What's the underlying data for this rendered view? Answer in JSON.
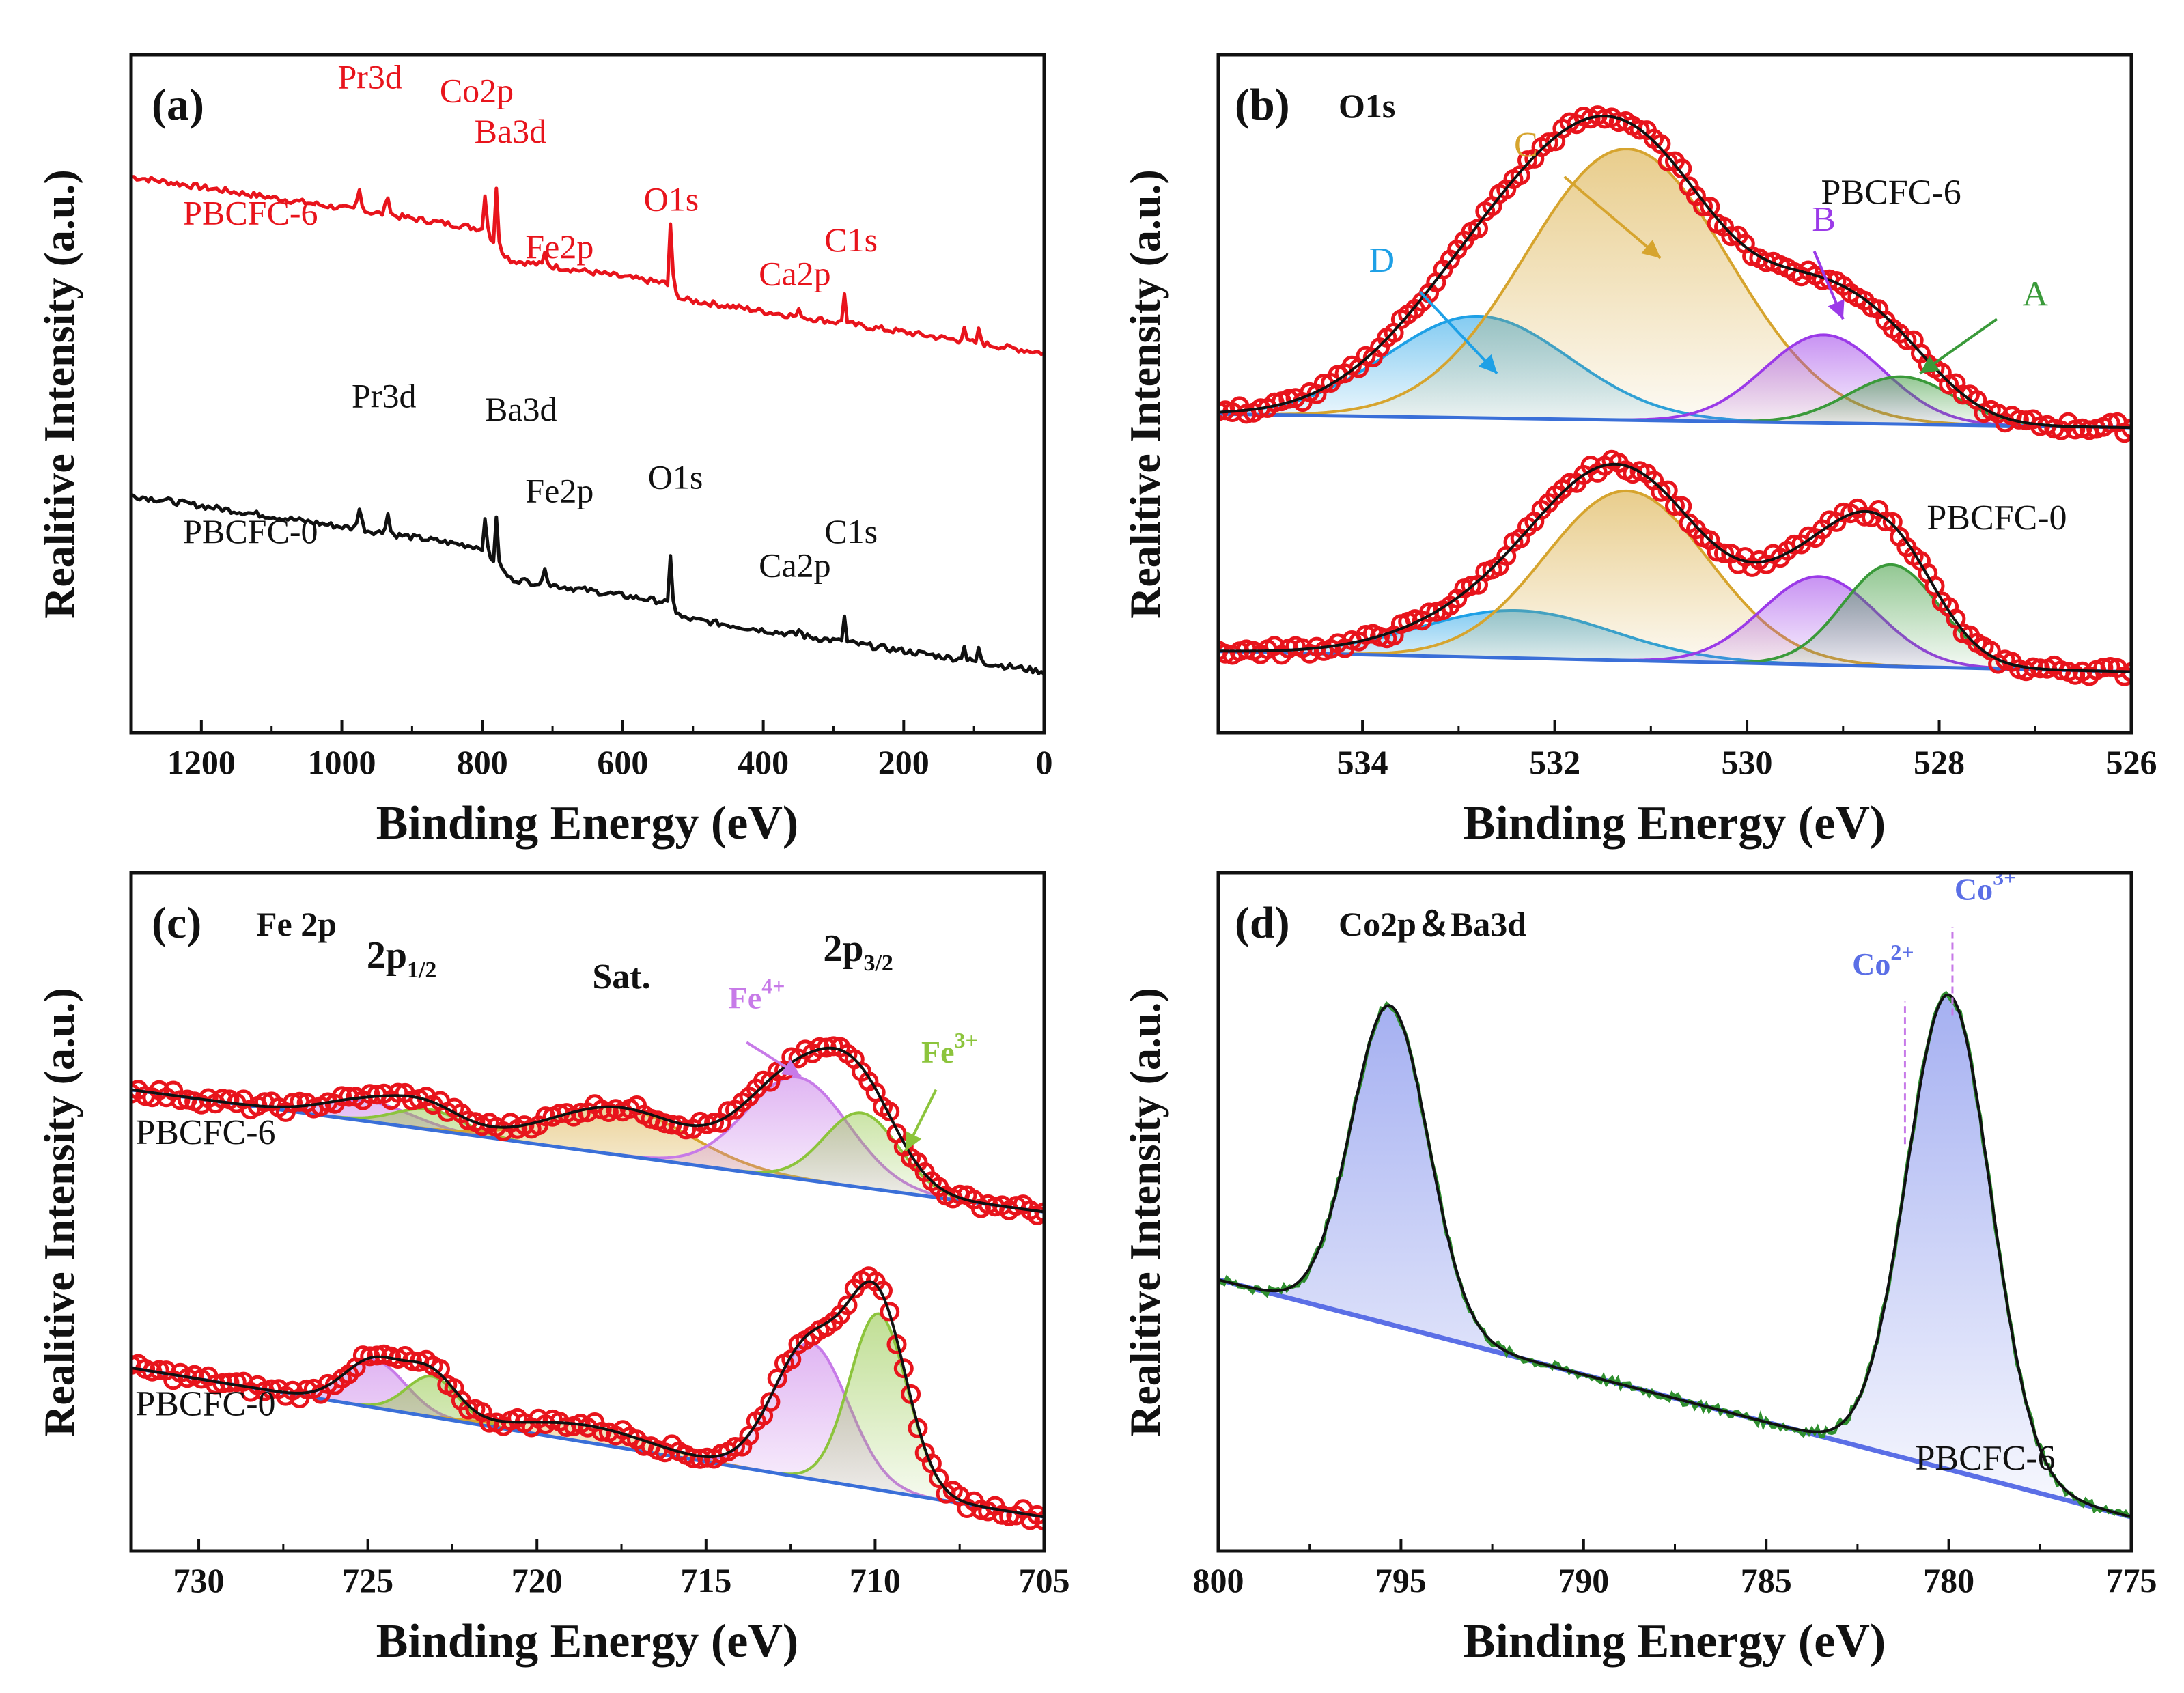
{
  "figure": {
    "ylabel": "Realitive Intensity (a.u.)",
    "xlabel": "Binding Energy (eV)"
  },
  "chart_data": [
    {
      "id": "a",
      "type": "line",
      "panel_label": "(a)",
      "title": "",
      "xlabel": "Binding Energy (eV)",
      "ylabel": "Realitive Intensity (a.u.)",
      "xlim": [
        1300,
        0
      ],
      "ylim": [
        0,
        100
      ],
      "xticks": [
        1200,
        1000,
        800,
        600,
        400,
        200,
        0
      ],
      "series": [
        {
          "name": "PBCFC-6",
          "color": "#e8141c",
          "base": 62,
          "slope": 20,
          "peaks": [
            [
              975,
              3,
              6
            ],
            [
              935,
              3,
              5
            ],
            [
              795,
              8,
              3
            ],
            [
              779,
              10,
              3
            ],
            [
              710,
              2,
              4
            ],
            [
              531,
              13,
              3
            ],
            [
              348,
              1,
              4
            ],
            [
              285,
              5,
              3
            ],
            [
              115,
              3,
              3
            ],
            [
              92,
              3,
              3
            ]
          ],
          "steps": [
            [
              800,
              4,
              40
            ],
            [
              540,
              2,
              25
            ]
          ],
          "labels": [
            {
              "text": "PBCFC-6",
              "x": 1130,
              "y": 75
            },
            {
              "text": "Pr3d",
              "x": 960,
              "y": 95
            },
            {
              "text": "Co2p",
              "x": 808,
              "y": 93
            },
            {
              "text": "Ba3d",
              "x": 760,
              "y": 87
            },
            {
              "text": "Fe2p",
              "x": 690,
              "y": 70
            },
            {
              "text": "O1s",
              "x": 531,
              "y": 77
            },
            {
              "text": "Ca2p",
              "x": 355,
              "y": 66
            },
            {
              "text": "C1s",
              "x": 275,
              "y": 71
            }
          ]
        },
        {
          "name": "PBCFC-0",
          "color": "#111111",
          "base": 15,
          "slope": 20,
          "peaks": [
            [
              975,
              3,
              6
            ],
            [
              935,
              3,
              5
            ],
            [
              795,
              6,
              3
            ],
            [
              779,
              8,
              3
            ],
            [
              710,
              3,
              4
            ],
            [
              531,
              10,
              3
            ],
            [
              348,
              1,
              4
            ],
            [
              285,
              4,
              3
            ],
            [
              115,
              3,
              3
            ],
            [
              92,
              3,
              3
            ]
          ],
          "steps": [
            [
              800,
              4,
              40
            ],
            [
              540,
              2,
              25
            ]
          ],
          "labels": [
            {
              "text": "PBCFC-0",
              "x": 1130,
              "y": 28
            },
            {
              "text": "Pr3d",
              "x": 940,
              "y": 48
            },
            {
              "text": "Ba3d",
              "x": 745,
              "y": 46
            },
            {
              "text": "Fe2p",
              "x": 690,
              "y": 34
            },
            {
              "text": "O1s",
              "x": 525,
              "y": 36
            },
            {
              "text": "Ca2p",
              "x": 355,
              "y": 23
            },
            {
              "text": "C1s",
              "x": 275,
              "y": 28
            }
          ]
        }
      ]
    },
    {
      "id": "b",
      "type": "line",
      "panel_label": "(b)",
      "title": "O1s",
      "xlabel": "Binding Energy (eV)",
      "ylabel": "Realitive Intensity (a.u.)",
      "xlim": [
        535.5,
        526
      ],
      "ylim": [
        0,
        100
      ],
      "xticks": [
        534,
        532,
        530,
        528,
        526
      ],
      "spectra": [
        {
          "name": "PBCFC-6",
          "baseline_left": 47,
          "baseline_right": 45,
          "components": [
            {
              "name": "D",
              "center": 532.8,
              "height": 15,
              "sigma": 0.95,
              "color": "#1ea0e6"
            },
            {
              "name": "C",
              "center": 531.25,
              "height": 40,
              "sigma": 1.05,
              "color": "#d6a42e"
            },
            {
              "name": "B",
              "center": 529.2,
              "height": 13,
              "sigma": 0.62,
              "color": "#9b3ae8"
            },
            {
              "name": "A",
              "center": 528.4,
              "height": 7,
              "sigma": 0.55,
              "color": "#3a9a3a"
            }
          ],
          "fit_color": "#111111",
          "data_color": "#e8141c"
        },
        {
          "name": "PBCFC-0",
          "baseline_left": 12,
          "baseline_right": 9,
          "components": [
            {
              "name": "D",
              "center": 532.4,
              "height": 7,
              "sigma": 1.0,
              "color": "#1ea0e6"
            },
            {
              "name": "C",
              "center": 531.25,
              "height": 25,
              "sigma": 0.85,
              "color": "#d6a42e"
            },
            {
              "name": "B",
              "center": 529.25,
              "height": 13,
              "sigma": 0.6,
              "color": "#9b3ae8"
            },
            {
              "name": "A",
              "center": 528.5,
              "height": 15,
              "sigma": 0.5,
              "color": "#3a9a3a"
            }
          ],
          "fit_color": "#111111",
          "data_color": "#e8141c"
        }
      ],
      "labels": [
        {
          "text": "PBCFC-6",
          "x": 528.5,
          "y": 78,
          "color": "#111111"
        },
        {
          "text": "PBCFC-0",
          "x": 527.4,
          "y": 30,
          "color": "#111111"
        },
        {
          "text": "D",
          "x": 533.8,
          "y": 68,
          "color": "#1ea0e6"
        },
        {
          "text": "C",
          "x": 532.3,
          "y": 85,
          "color": "#d6a42e"
        },
        {
          "text": "B",
          "x": 529.2,
          "y": 74,
          "color": "#9b3ae8"
        },
        {
          "text": "A",
          "x": 527.0,
          "y": 63,
          "color": "#3a9a3a"
        }
      ],
      "arrows": [
        {
          "from": [
            533.4,
            65
          ],
          "to": [
            532.6,
            53
          ],
          "color": "#1ea0e6"
        },
        {
          "from": [
            531.9,
            82
          ],
          "to": [
            530.9,
            70
          ],
          "color": "#d6a42e"
        },
        {
          "from": [
            529.3,
            71
          ],
          "to": [
            529.0,
            61
          ],
          "color": "#9b3ae8"
        },
        {
          "from": [
            527.4,
            61
          ],
          "to": [
            528.2,
            53
          ],
          "color": "#3a9a3a"
        }
      ]
    },
    {
      "id": "c",
      "type": "line",
      "panel_label": "(c)",
      "title": "Fe 2p",
      "xlabel": "Binding Energy (eV)",
      "ylabel": "Realitive Intensity (a.u.)",
      "xlim": [
        732,
        705
      ],
      "ylim": [
        0,
        100
      ],
      "xticks": [
        730,
        725,
        720,
        715,
        710,
        705
      ],
      "spectra": [
        {
          "name": "PBCFC-6",
          "baseline_left": 68,
          "baseline_right": 50,
          "components": [
            {
              "name": "Fe4+ 2p1/2",
              "center": 725.0,
              "height": 3,
              "sigma": 1.3,
              "color": "#c77ae8"
            },
            {
              "name": "Fe3+ 2p1/2",
              "center": 723.2,
              "height": 3,
              "sigma": 1.0,
              "color": "#8cc43c"
            },
            {
              "name": "Sat.",
              "center": 717.5,
              "height": 7,
              "sigma": 2.0,
              "color": "#d6a42e"
            },
            {
              "name": "Fe4+",
              "center": 712.3,
              "height": 15,
              "sigma": 1.5,
              "color": "#c77ae8"
            },
            {
              "name": "Fe3+",
              "center": 710.4,
              "height": 11,
              "sigma": 1.1,
              "color": "#8cc43c"
            }
          ],
          "fit_color": "#111111",
          "data_color": "#e8141c"
        },
        {
          "name": "PBCFC-0",
          "baseline_left": 27,
          "baseline_right": 5,
          "components": [
            {
              "name": "Fe4+ 2p1/2",
              "center": 724.8,
              "height": 7,
              "sigma": 0.9,
              "color": "#c77ae8"
            },
            {
              "name": "Fe3+ 2p1/2",
              "center": 723.1,
              "height": 6,
              "sigma": 0.75,
              "color": "#8cc43c"
            },
            {
              "name": "Sat.",
              "center": 718.5,
              "height": 2.5,
              "sigma": 1.8,
              "color": "#d6a42e"
            },
            {
              "name": "Fe4+",
              "center": 711.9,
              "height": 20,
              "sigma": 1.1,
              "color": "#c77ae8"
            },
            {
              "name": "Fe3+",
              "center": 709.9,
              "height": 26,
              "sigma": 0.85,
              "color": "#8cc43c"
            }
          ],
          "fit_color": "#111111",
          "data_color": "#e8141c"
        }
      ],
      "labels": [
        {
          "text": "PBCFC-6",
          "x": 729.8,
          "y": 60,
          "color": "#111111"
        },
        {
          "text": "PBCFC-0",
          "x": 729.8,
          "y": 20,
          "color": "#111111"
        },
        {
          "text": "Sat.",
          "x": 717.5,
          "y": 83,
          "color": "#111111"
        }
      ],
      "rich_labels": [
        {
          "base": "2p",
          "sub": "1/2",
          "sup": "",
          "x": 724.0,
          "y": 86,
          "color": "#111111"
        },
        {
          "base": "2p",
          "sub": "3/2",
          "sup": "",
          "x": 710.5,
          "y": 87,
          "color": "#111111"
        },
        {
          "base": "Fe",
          "sub": "",
          "sup": "4+",
          "x": 713.5,
          "y": 80,
          "color": "#c77ae8"
        },
        {
          "base": "Fe",
          "sub": "",
          "sup": "3+",
          "x": 707.8,
          "y": 72,
          "color": "#8cc43c"
        }
      ],
      "arrows": [
        {
          "from": [
            713.8,
            75
          ],
          "to": [
            712.2,
            70
          ],
          "color": "#c77ae8"
        },
        {
          "from": [
            708.2,
            68
          ],
          "to": [
            709.1,
            59
          ],
          "color": "#8cc43c"
        }
      ]
    },
    {
      "id": "d",
      "type": "line",
      "panel_label": "(d)",
      "title": "Co2p＆Ba3d",
      "xlabel": "Binding Energy (eV)",
      "ylabel": "Realitive Intensity (a.u.)",
      "xlim": [
        800,
        775
      ],
      "ylim": [
        0,
        100
      ],
      "xticks": [
        800,
        795,
        790,
        785,
        780,
        775
      ],
      "spectra": [
        {
          "name": "PBCFC-6",
          "baseline_left": 40,
          "baseline_right": 5,
          "components": [
            {
              "name": "Ba3d 3/2",
              "center": 795.3,
              "height": 47,
              "sigma": 1.05,
              "color": "#5b6fe6"
            },
            {
              "name": "Co3+",
              "center": 780.0,
              "height": 70,
              "sigma": 1.15,
              "color": "#5b6fe6"
            }
          ],
          "fit_color": "#111111",
          "data_color": "#2f8f2f"
        }
      ],
      "labels": [
        {
          "text": "PBCFC-6",
          "x": 779.0,
          "y": 12,
          "color": "#111111"
        }
      ],
      "rich_labels": [
        {
          "base": "Co",
          "sub": "",
          "sup": "2+",
          "x": 781.8,
          "y": 85,
          "color": "#5b6fe6"
        },
        {
          "base": "Co",
          "sub": "",
          "sup": "3+",
          "x": 779.0,
          "y": 96,
          "color": "#5b6fe6"
        }
      ],
      "vlines": [
        {
          "x": 781.2,
          "y0": 60,
          "y1": 81,
          "color": "#c77ae8"
        },
        {
          "x": 779.9,
          "y0": 79,
          "y1": 92,
          "color": "#c77ae8"
        }
      ]
    }
  ]
}
